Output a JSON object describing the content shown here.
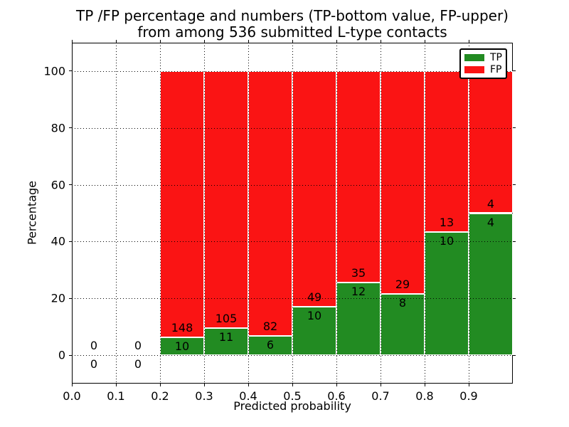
{
  "chart_data": {
    "type": "bar",
    "stacked": true,
    "title_lines": [
      "TP /FP percentage and numbers (TP-bottom value, FP-upper)",
      "from among 536 submitted L-type contacts"
    ],
    "xlabel": "Predicted probability",
    "ylabel": "Percentage",
    "xlim": [
      0.0,
      1.0
    ],
    "ylim": [
      -10,
      110
    ],
    "x_ticks": [
      0.0,
      0.1,
      0.2,
      0.3,
      0.4,
      0.5,
      0.6,
      0.7,
      0.8,
      0.9
    ],
    "x_tick_labels": [
      "0.0",
      "0.1",
      "0.2",
      "0.3",
      "0.4",
      "0.5",
      "0.6",
      "0.7",
      "0.8",
      "0.9"
    ],
    "y_ticks": [
      0,
      20,
      40,
      60,
      80,
      100
    ],
    "y_tick_labels": [
      "0",
      "20",
      "40",
      "60",
      "80",
      "100"
    ],
    "grid": "dotted black, drawn above bars",
    "bar_semantics": "each bin stacked to 100%: green TP share bottom, red FP share top; counts annotated (TP below boundary, FP above boundary)",
    "total_contacts": 536,
    "bins": [
      {
        "range": [
          0.0,
          0.1
        ],
        "tp": 0,
        "fp": 0,
        "tp_pct": 0
      },
      {
        "range": [
          0.1,
          0.2
        ],
        "tp": 0,
        "fp": 0,
        "tp_pct": 0
      },
      {
        "range": [
          0.2,
          0.3
        ],
        "tp": 10,
        "fp": 148,
        "tp_pct": 6.33
      },
      {
        "range": [
          0.3,
          0.4
        ],
        "tp": 11,
        "fp": 105,
        "tp_pct": 9.48
      },
      {
        "range": [
          0.4,
          0.5
        ],
        "tp": 6,
        "fp": 82,
        "tp_pct": 6.82
      },
      {
        "range": [
          0.5,
          0.6
        ],
        "tp": 10,
        "fp": 49,
        "tp_pct": 16.95
      },
      {
        "range": [
          0.6,
          0.7
        ],
        "tp": 12,
        "fp": 35,
        "tp_pct": 25.53
      },
      {
        "range": [
          0.7,
          0.8
        ],
        "tp": 8,
        "fp": 29,
        "tp_pct": 21.62
      },
      {
        "range": [
          0.8,
          0.9
        ],
        "tp": 10,
        "fp": 13,
        "tp_pct": 43.48
      },
      {
        "range": [
          0.9,
          1.0
        ],
        "tp": 4,
        "fp": 4,
        "tp_pct": 50.0
      }
    ],
    "colors": {
      "tp": "#228b22",
      "fp": "#fa1414",
      "bar_edge": "#ffffff",
      "grid": "#000000"
    },
    "legend": [
      {
        "label": "TP",
        "color": "#228b22"
      },
      {
        "label": "FP",
        "color": "#fa1414"
      }
    ],
    "legend_position": "upper right"
  }
}
